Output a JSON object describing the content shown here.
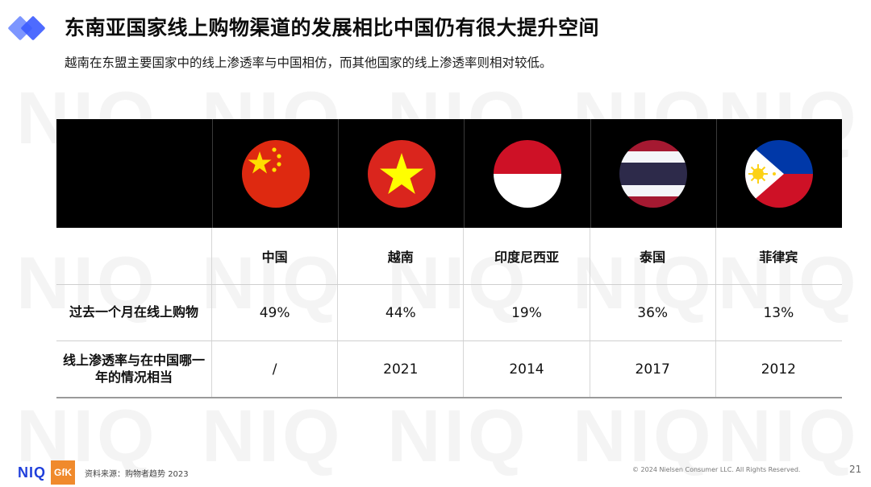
{
  "header": {
    "title": "东南亚国家线上购物渠道的发展相比中国仍有很大提升空间",
    "subtitle": "越南在东盟主要国家中的线上渗透率与中国相仿，而其他国家的线上渗透率则相对较低。"
  },
  "table": {
    "countries": [
      "中国",
      "越南",
      "印度尼西亚",
      "泰国",
      "菲律宾"
    ],
    "flags": [
      "china-flag-icon",
      "vietnam-flag-icon",
      "indonesia-flag-icon",
      "thailand-flag-icon",
      "philippines-flag-icon"
    ],
    "rows": [
      {
        "label": "过去一个月在线上购物",
        "values": [
          "49%",
          "44%",
          "19%",
          "36%",
          "13%"
        ]
      },
      {
        "label": "线上渗透率与在中国哪一年的情况相当",
        "values": [
          "/",
          "2021",
          "2014",
          "2017",
          "2012"
        ]
      }
    ]
  },
  "footer": {
    "niq_logo": "NIQ",
    "gfk_logo": "GfK",
    "source": "资料来源：购物者趋势 2023",
    "copyright": "© 2024 Nielsen Consumer LLC. All Rights Reserved.",
    "page_number": "21"
  },
  "watermark": "NIQ",
  "colors": {
    "accent": "#3b5bff",
    "header_band": "#000000",
    "gfk": "#f08a2c"
  }
}
